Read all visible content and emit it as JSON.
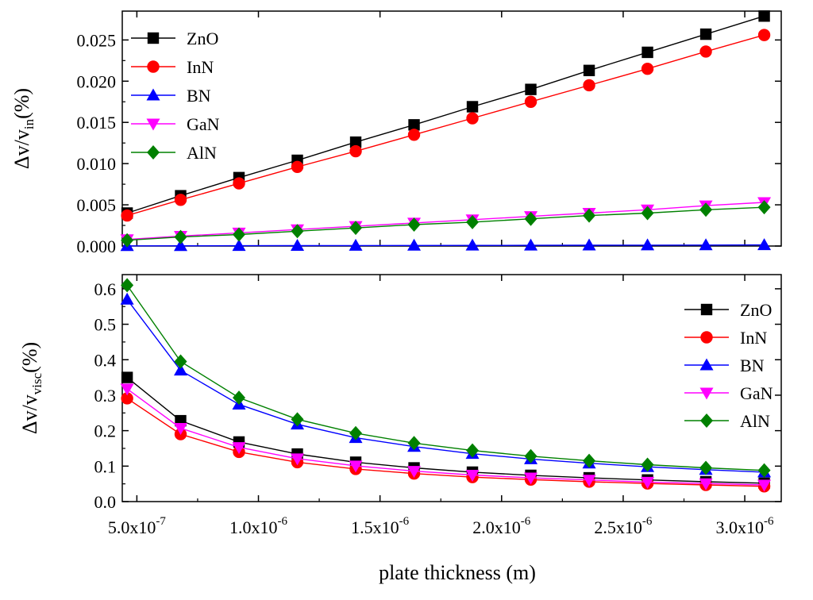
{
  "chart_data": [
    {
      "type": "line",
      "panel": "top",
      "ylabel_main": "Δv/v",
      "ylabel_sub": "in",
      "ylabel_unit": "(%)",
      "xlabel": "",
      "x": [
        4.6e-07,
        6.8e-07,
        9.2e-07,
        1.16e-06,
        1.4e-06,
        1.64e-06,
        1.88e-06,
        2.12e-06,
        2.36e-06,
        2.6e-06,
        2.84e-06,
        3.08e-06
      ],
      "xlim": [
        4.4e-07,
        3.15e-06
      ],
      "ylim": [
        0,
        0.0285
      ],
      "yticks": [
        0.0,
        0.005,
        0.01,
        0.015,
        0.02,
        0.025
      ],
      "ytick_labels": [
        "0.000",
        "0.005",
        "0.010",
        "0.015",
        "0.020",
        "0.025"
      ],
      "legend_position": "top-left",
      "series": [
        {
          "name": "ZnO",
          "color": "#000000",
          "marker": "square",
          "values": [
            0.004,
            0.0061,
            0.0083,
            0.0104,
            0.0126,
            0.0147,
            0.0169,
            0.019,
            0.0213,
            0.0235,
            0.0257,
            0.0279
          ]
        },
        {
          "name": "InN",
          "color": "#ff0000",
          "marker": "circle",
          "values": [
            0.0037,
            0.0056,
            0.0076,
            0.0096,
            0.0115,
            0.0135,
            0.0155,
            0.0175,
            0.0195,
            0.0215,
            0.0236,
            0.0256
          ]
        },
        {
          "name": "BN",
          "color": "#0000ff",
          "marker": "triangle-up",
          "values": [
            2e-05,
            3e-05,
            4e-05,
            5e-05,
            6e-05,
            7e-05,
            8e-05,
            9e-05,
            0.0001,
            0.00011,
            0.00012,
            0.00013
          ]
        },
        {
          "name": "GaN",
          "color": "#ff00ff",
          "marker": "triangle-down",
          "values": [
            0.0008,
            0.0012,
            0.0016,
            0.002,
            0.0024,
            0.0028,
            0.0032,
            0.0036,
            0.004,
            0.0044,
            0.0049,
            0.0053
          ]
        },
        {
          "name": "AlN",
          "color": "#008000",
          "marker": "diamond",
          "values": [
            0.0007,
            0.0011,
            0.0014,
            0.0018,
            0.0022,
            0.0026,
            0.0029,
            0.0033,
            0.0037,
            0.004,
            0.0044,
            0.0047
          ]
        }
      ]
    },
    {
      "type": "line",
      "panel": "bottom",
      "ylabel_main": "Δv/v",
      "ylabel_sub": "visc",
      "ylabel_unit": "(%)",
      "xlabel": "plate thickness (m)",
      "x": [
        4.6e-07,
        6.8e-07,
        9.2e-07,
        1.16e-06,
        1.4e-06,
        1.64e-06,
        1.88e-06,
        2.12e-06,
        2.36e-06,
        2.6e-06,
        2.84e-06,
        3.08e-06
      ],
      "xlim": [
        4.4e-07,
        3.15e-06
      ],
      "ylim": [
        0,
        0.64
      ],
      "yticks": [
        0.0,
        0.1,
        0.2,
        0.3,
        0.4,
        0.5,
        0.6
      ],
      "ytick_labels": [
        "0.0",
        "0.1",
        "0.2",
        "0.3",
        "0.4",
        "0.5",
        "0.6"
      ],
      "xticks": [
        5e-07,
        1e-06,
        1.5e-06,
        2e-06,
        2.5e-06,
        3e-06
      ],
      "xtick_labels": [
        {
          "mant": "5.0x10",
          "exp": "-7"
        },
        {
          "mant": "1.0x10",
          "exp": "-6"
        },
        {
          "mant": "1.5x10",
          "exp": "-6"
        },
        {
          "mant": "2.0x10",
          "exp": "-6"
        },
        {
          "mant": "2.5x10",
          "exp": "-6"
        },
        {
          "mant": "3.0x10",
          "exp": "-6"
        }
      ],
      "legend_position": "right",
      "series": [
        {
          "name": "ZnO",
          "color": "#000000",
          "marker": "square",
          "values": [
            0.35,
            0.228,
            0.168,
            0.134,
            0.111,
            0.095,
            0.083,
            0.074,
            0.067,
            0.061,
            0.056,
            0.052
          ]
        },
        {
          "name": "InN",
          "color": "#ff0000",
          "marker": "circle",
          "values": [
            0.291,
            0.19,
            0.14,
            0.111,
            0.092,
            0.079,
            0.069,
            0.062,
            0.056,
            0.051,
            0.047,
            0.043
          ]
        },
        {
          "name": "BN",
          "color": "#0000ff",
          "marker": "triangle-up",
          "values": [
            0.57,
            0.37,
            0.274,
            0.218,
            0.18,
            0.155,
            0.135,
            0.12,
            0.108,
            0.098,
            0.09,
            0.083
          ]
        },
        {
          "name": "GaN",
          "color": "#ff00ff",
          "marker": "triangle-down",
          "values": [
            0.318,
            0.207,
            0.153,
            0.121,
            0.101,
            0.086,
            0.075,
            0.067,
            0.061,
            0.055,
            0.051,
            0.047
          ]
        },
        {
          "name": "AlN",
          "color": "#008000",
          "marker": "diamond",
          "values": [
            0.61,
            0.395,
            0.293,
            0.232,
            0.193,
            0.165,
            0.144,
            0.128,
            0.115,
            0.104,
            0.095,
            0.088
          ]
        }
      ]
    }
  ]
}
